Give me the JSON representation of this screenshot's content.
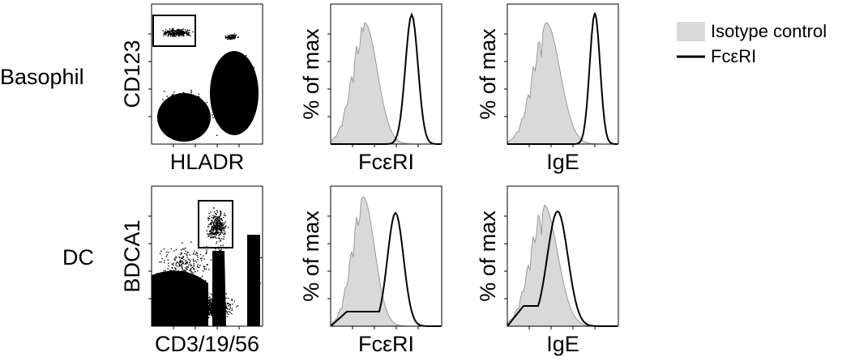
{
  "rows": [
    {
      "label": "Basophil",
      "panels": [
        {
          "y_label": "CD123",
          "x_label": "HLADR"
        },
        {
          "y_label": "% of max",
          "x_label": "FcεRI"
        },
        {
          "y_label": "% of max",
          "x_label": "IgE"
        }
      ]
    },
    {
      "label": "DC",
      "panels": [
        {
          "y_label": "BDCA1",
          "x_label": "CD3/19/56"
        },
        {
          "y_label": "% of max",
          "x_label": "FcεRI"
        },
        {
          "y_label": "% of max",
          "x_label": "IgE"
        }
      ]
    }
  ],
  "legend": {
    "items": [
      "Isotype control",
      "FcεRI"
    ]
  }
}
